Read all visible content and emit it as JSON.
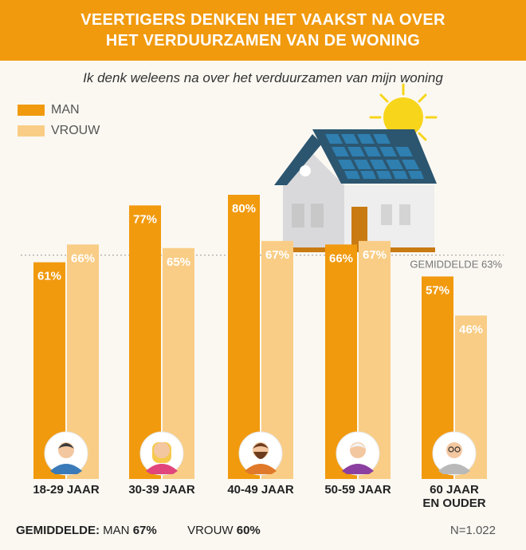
{
  "header": {
    "title_line1": "VEERTIGERS DENKEN HET VAAKST NA OVER",
    "title_line2": "HET VERDUURZAMEN VAN DE WONING"
  },
  "subtitle": "Ik denk weleens na over het verduurzamen van mijn woning",
  "legend": [
    {
      "label": "MAN",
      "color": "#f19a0e"
    },
    {
      "label": "VROUW",
      "color": "#f9cd86"
    }
  ],
  "chart_data": {
    "type": "bar",
    "categories": [
      "18-29 JAAR",
      "30-39 JAAR",
      "40-49 JAAR",
      "50-59 JAAR",
      "60 JAAR EN OUDER"
    ],
    "category_lines": [
      [
        "18-29 JAAR"
      ],
      [
        "30-39 JAAR"
      ],
      [
        "40-49 JAAR"
      ],
      [
        "50-59 JAAR"
      ],
      [
        "60 JAAR",
        "EN OUDER"
      ]
    ],
    "series": [
      {
        "name": "MAN",
        "values": [
          61,
          77,
          80,
          66,
          57
        ],
        "color": "#f19a0e",
        "labels": [
          "61%",
          "77%",
          "80%",
          "66%",
          "57%"
        ]
      },
      {
        "name": "VROUW",
        "values": [
          66,
          65,
          67,
          67,
          46
        ],
        "color": "#f9cd86",
        "labels": [
          "66%",
          "65%",
          "67%",
          "67%",
          "46%"
        ]
      }
    ],
    "reference_line": {
      "value": 63,
      "label": "GEMIDDELDE 63%"
    },
    "ylim": [
      0,
      80
    ],
    "icons": [
      "young-man-icon",
      "young-woman-icon",
      "bearded-man-icon",
      "older-woman-icon",
      "elderly-man-icon"
    ]
  },
  "footer": {
    "label": "GEMIDDELDE:",
    "man_label": "MAN",
    "man_value": "67%",
    "vrouw_label": "VROUW",
    "vrouw_value": "60%",
    "n": "N=1.022"
  }
}
